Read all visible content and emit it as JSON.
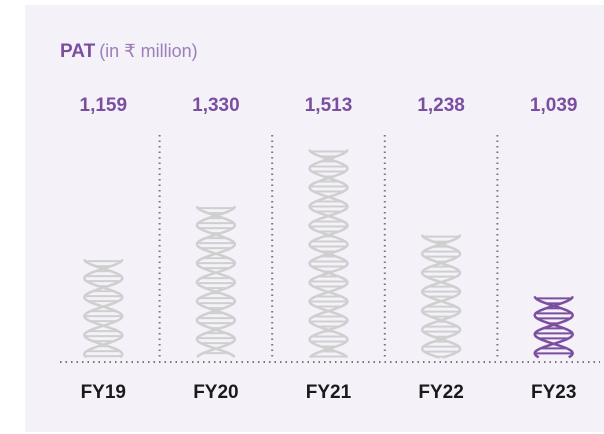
{
  "chart_data": {
    "type": "helix",
    "title": "PAT",
    "subtitle": "(in ₹ million)",
    "categories": [
      "FY19",
      "FY20",
      "FY21",
      "FY22",
      "FY23"
    ],
    "values": [
      1159,
      1330,
      1513,
      1238,
      1039
    ],
    "value_labels": [
      "1,159",
      "1,330",
      "1,513",
      "1,238",
      "1,039"
    ],
    "colors": [
      "#cfcfcf",
      "#cfcfcf",
      "#cfcfcf",
      "#cfcfcf",
      "#7b4fa0"
    ],
    "ylim": [
      840,
      1550
    ]
  }
}
